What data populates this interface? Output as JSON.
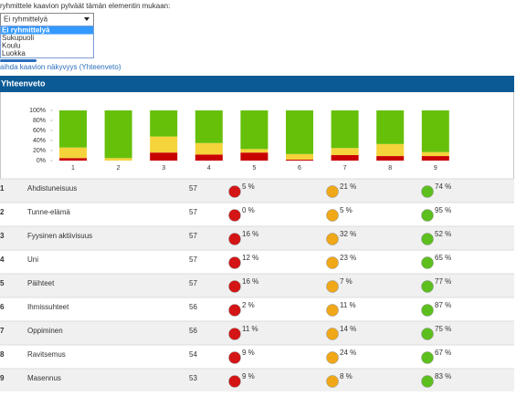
{
  "filter": {
    "label": "ryhmittele kaavion pylväät tämän elementin mukaan:",
    "selected": "Ei ryhmittelyä",
    "options": [
      "Ei ryhmittelyä",
      "Sukupuoli",
      "Koulu",
      "Luokka"
    ]
  },
  "toggle_link": "aihda kaavion näkyvyys (Yhteenveto)",
  "panel": {
    "title": "Yhteenveto"
  },
  "chart_data": {
    "type": "bar",
    "stacked": true,
    "categories": [
      "1",
      "2",
      "3",
      "4",
      "5",
      "6",
      "7",
      "8",
      "9"
    ],
    "series": [
      {
        "color": "#c80000",
        "values": [
          5,
          0,
          16,
          12,
          16,
          2,
          11,
          9,
          9
        ]
      },
      {
        "color": "#f5d33a",
        "values": [
          21,
          5,
          32,
          23,
          7,
          11,
          14,
          24,
          8
        ]
      },
      {
        "color": "#66c00a",
        "values": [
          74,
          95,
          52,
          65,
          77,
          87,
          75,
          67,
          83
        ]
      }
    ],
    "ylim": [
      0,
      100
    ],
    "yticks": [
      {
        "value": 0,
        "label": "0%"
      },
      {
        "value": 20,
        "label": "20%"
      },
      {
        "value": 40,
        "label": "40%"
      },
      {
        "value": 60,
        "label": "60%"
      },
      {
        "value": 80,
        "label": "80%"
      },
      {
        "value": 100,
        "label": "100%"
      }
    ]
  },
  "table": {
    "rows": [
      [
        "1",
        "Ahdistuneisuus",
        "57",
        "5 %",
        "21 %",
        "74 %"
      ],
      [
        "2",
        "Tunne-elämä",
        "57",
        "0 %",
        "5 %",
        "95 %"
      ],
      [
        "3",
        "Fyysinen aktiivisuus",
        "57",
        "16 %",
        "32 %",
        "52 %"
      ],
      [
        "4",
        "Uni",
        "57",
        "12 %",
        "23 %",
        "65 %"
      ],
      [
        "5",
        "Päihteet",
        "57",
        "16 %",
        "7 %",
        "77 %"
      ],
      [
        "6",
        "Ihmissuhteet",
        "56",
        "2 %",
        "11 %",
        "87 %"
      ],
      [
        "7",
        "Oppiminen",
        "56",
        "11 %",
        "14 %",
        "75 %"
      ],
      [
        "8",
        "Ravitsemus",
        "54",
        "9 %",
        "24 %",
        "67 %"
      ],
      [
        "9",
        "Masennus",
        "53",
        "9 %",
        "8 %",
        "83 %"
      ]
    ]
  }
}
